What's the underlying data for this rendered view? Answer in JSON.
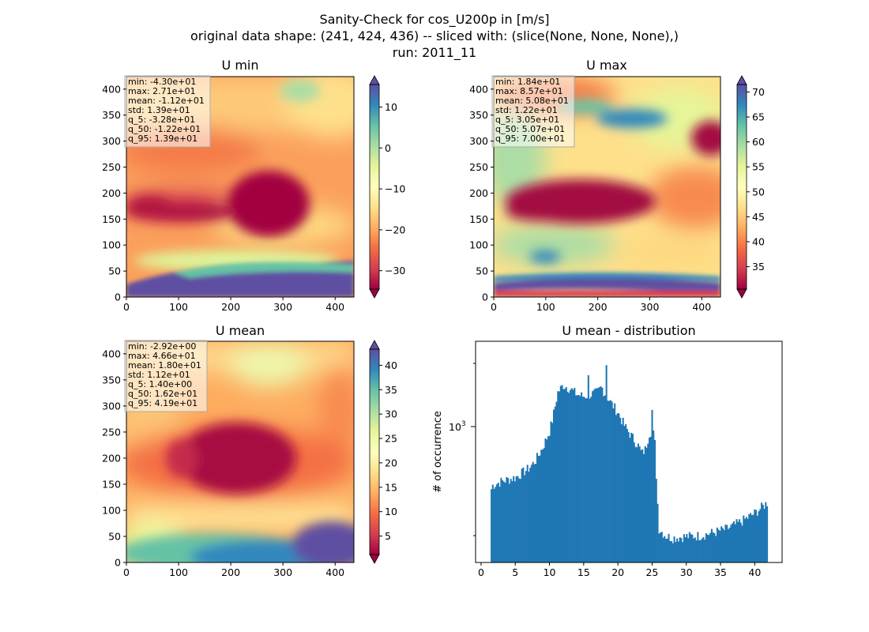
{
  "figure": {
    "title_lines": [
      "Sanity-Check for cos_U200p in [m/s]",
      "original data shape: (241, 424, 436) -- sliced with: (slice(None, None, None),)",
      "run: 2011_11"
    ]
  },
  "colormap": "Spectral",
  "panels": [
    {
      "title": "U min",
      "x_ticks": [
        "0",
        "100",
        "200",
        "300",
        "400"
      ],
      "y_ticks": [
        "0",
        "50",
        "100",
        "150",
        "200",
        "250",
        "300",
        "350",
        "400"
      ],
      "colorbar_ticks": [
        "−30",
        "−20",
        "−10",
        "0",
        "10"
      ],
      "colorbar_tick_values": [
        -30,
        -20,
        -10,
        0,
        10
      ],
      "colorbar_range": [
        -34.5,
        15.5
      ],
      "stats": [
        "min: -4.30e+01",
        "max: 2.71e+01",
        "mean: -1.12e+01",
        "std: 1.39e+01",
        "q_5: -3.28e+01",
        "q_50: -1.22e+01",
        "q_95: 1.39e+01"
      ]
    },
    {
      "title": "U max",
      "x_ticks": [
        "0",
        "100",
        "200",
        "300",
        "400"
      ],
      "y_ticks": [
        "0",
        "50",
        "100",
        "150",
        "200",
        "250",
        "300",
        "350",
        "400"
      ],
      "colorbar_ticks": [
        "35",
        "40",
        "45",
        "50",
        "55",
        "60",
        "65",
        "70"
      ],
      "colorbar_tick_values": [
        35,
        40,
        45,
        50,
        55,
        60,
        65,
        70
      ],
      "colorbar_range": [
        30.5,
        71.5
      ],
      "stats": [
        "min: 1.84e+01",
        "max: 8.57e+01",
        "mean: 5.08e+01",
        "std: 1.22e+01",
        "q_5: 3.05e+01",
        "q_50: 5.07e+01",
        "q_95: 7.00e+01"
      ]
    },
    {
      "title": "U mean",
      "x_ticks": [
        "0",
        "100",
        "200",
        "300",
        "400"
      ],
      "y_ticks": [
        "0",
        "50",
        "100",
        "150",
        "200",
        "250",
        "300",
        "350",
        "400"
      ],
      "colorbar_ticks": [
        "5",
        "10",
        "15",
        "20",
        "25",
        "30",
        "35",
        "40"
      ],
      "colorbar_tick_values": [
        5,
        10,
        15,
        20,
        25,
        30,
        35,
        40
      ],
      "colorbar_range": [
        1.2,
        43.3
      ],
      "stats": [
        "min: -2.92e+00",
        "max: 4.66e+01",
        "mean: 1.80e+01",
        "std: 1.12e+01",
        "q_5: 1.40e+00",
        "q_50: 1.62e+01",
        "q_95: 4.19e+01"
      ]
    }
  ],
  "chart_data": [
    {
      "type": "heatmap",
      "title": "U min",
      "x_range": [
        0,
        436
      ],
      "y_range": [
        0,
        424
      ],
      "x_ticks": [
        0,
        100,
        200,
        300,
        400
      ],
      "y_ticks": [
        0,
        50,
        100,
        150,
        200,
        250,
        300,
        350,
        400
      ],
      "colorbar": {
        "range": [
          -34.5,
          15.5
        ],
        "ticks": [
          -30,
          -20,
          -10,
          0,
          10
        ],
        "extend": "both"
      }
    },
    {
      "type": "heatmap",
      "title": "U max",
      "x_range": [
        0,
        436
      ],
      "y_range": [
        0,
        424
      ],
      "x_ticks": [
        0,
        100,
        200,
        300,
        400
      ],
      "y_ticks": [
        0,
        50,
        100,
        150,
        200,
        250,
        300,
        350,
        400
      ],
      "colorbar": {
        "range": [
          30.5,
          71.5
        ],
        "ticks": [
          35,
          40,
          45,
          50,
          55,
          60,
          65,
          70
        ],
        "extend": "both"
      }
    },
    {
      "type": "heatmap",
      "title": "U mean",
      "x_range": [
        0,
        436
      ],
      "y_range": [
        0,
        424
      ],
      "x_ticks": [
        0,
        100,
        200,
        300,
        400
      ],
      "y_ticks": [
        0,
        50,
        100,
        150,
        200,
        250,
        300,
        350,
        400
      ],
      "colorbar": {
        "range": [
          1.2,
          43.3
        ],
        "ticks": [
          5,
          10,
          15,
          20,
          25,
          30,
          35,
          40
        ],
        "extend": "both"
      }
    },
    {
      "type": "bar",
      "title": "U mean - distribution",
      "ylabel": "# of occurrence",
      "xlabel": "",
      "y_scale": "log",
      "x_ticks": [
        "0",
        "5",
        "10",
        "15",
        "20",
        "25",
        "30",
        "35",
        "40"
      ],
      "x_tick_values": [
        0,
        5,
        10,
        15,
        20,
        25,
        30,
        35,
        40
      ],
      "y_tick_label": "10^3",
      "xlim": [
        -0.8,
        44
      ],
      "ylim": [
        190,
        3800
      ],
      "color": "#1f77b4",
      "profile_x": [
        1.4,
        1.7,
        3,
        5,
        7,
        8,
        9,
        10,
        10.5,
        11.2,
        12,
        13,
        14,
        15,
        16,
        17,
        17.6,
        18,
        18.4,
        19,
        20,
        21,
        22,
        23,
        23.5,
        24,
        24.6,
        25.1,
        25.4,
        25.7,
        26,
        27,
        28,
        30,
        32,
        34,
        36,
        38,
        40,
        41,
        41.9
      ],
      "profile_y": [
        500,
        540,
        570,
        600,
        680,
        760,
        900,
        1120,
        1350,
        1900,
        2100,
        2000,
        1850,
        1800,
        1850,
        1900,
        2050,
        1900,
        1800,
        1650,
        1450,
        1200,
        1050,
        920,
        830,
        880,
        1100,
        1150,
        950,
        500,
        300,
        272,
        265,
        270,
        273,
        285,
        300,
        330,
        370,
        400,
        430
      ]
    }
  ]
}
